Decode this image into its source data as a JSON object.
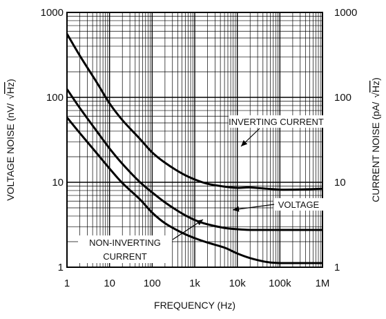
{
  "chart_data": {
    "type": "line",
    "x_scale": "log",
    "y_scale": "log",
    "xlabel": "FREQUENCY (Hz)",
    "ylabel_left": {
      "pre": "VOLTAGE NOISE (nV/",
      "root": "Hz",
      "post": ")"
    },
    "ylabel_right": {
      "pre": "CURRENT NOISE (pA/",
      "root": "Hz",
      "post": ")"
    },
    "xlim": [
      1,
      1000000
    ],
    "ylim": [
      1,
      1000
    ],
    "x_ticks": [
      {
        "value": 1,
        "label": "1"
      },
      {
        "value": 10,
        "label": "10"
      },
      {
        "value": 100,
        "label": "100"
      },
      {
        "value": 1000,
        "label": "1k"
      },
      {
        "value": 10000,
        "label": "10k"
      },
      {
        "value": 100000,
        "label": "100k"
      },
      {
        "value": 1000000,
        "label": "1M"
      }
    ],
    "y_ticks_left": [
      {
        "value": 1,
        "label": "1"
      },
      {
        "value": 10,
        "label": "10"
      },
      {
        "value": 100,
        "label": "100"
      },
      {
        "value": 1000,
        "label": "1000"
      }
    ],
    "y_ticks_right": [
      {
        "value": 1,
        "label": "1"
      },
      {
        "value": 10,
        "label": "10"
      },
      {
        "value": 100,
        "label": "100"
      },
      {
        "value": 1000,
        "label": "1000"
      }
    ],
    "grid": "log-minor",
    "series": [
      {
        "name": "INVERTING CURRENT",
        "x": [
          1,
          2,
          5,
          10,
          20,
          50,
          100,
          200,
          500,
          1000,
          2000,
          5000,
          10000,
          20000,
          50000,
          100000,
          200000,
          500000,
          1000000
        ],
        "y": [
          560,
          310,
          150,
          85,
          54,
          33,
          22.5,
          17,
          12.7,
          10.8,
          9.6,
          8.9,
          8.6,
          8.7,
          8.4,
          8.2,
          8.2,
          8.3,
          8.4
        ]
      },
      {
        "name": "VOLTAGE",
        "x": [
          1,
          2,
          5,
          10,
          20,
          50,
          100,
          200,
          500,
          1000,
          2000,
          5000,
          10000,
          20000,
          50000,
          100000,
          200000,
          500000,
          1000000
        ],
        "y": [
          125,
          75,
          40,
          25,
          16.5,
          10.2,
          7.6,
          5.8,
          4.3,
          3.6,
          3.2,
          2.9,
          2.8,
          2.75,
          2.75,
          2.75,
          2.75,
          2.75,
          2.75
        ]
      },
      {
        "name": "NON-INVERTING CURRENT",
        "x": [
          1,
          2,
          5,
          10,
          20,
          50,
          100,
          200,
          500,
          1000,
          2000,
          5000,
          10000,
          20000,
          50000,
          100000,
          200000,
          500000,
          1000000
        ],
        "y": [
          58,
          38,
          22,
          14.5,
          9.8,
          6.4,
          4.4,
          3.3,
          2.55,
          2.2,
          1.95,
          1.7,
          1.45,
          1.28,
          1.15,
          1.12,
          1.12,
          1.12,
          1.12
        ]
      }
    ],
    "annotations": [
      {
        "text": "INVERTING CURRENT",
        "series": "INVERTING CURRENT"
      },
      {
        "text": "VOLTAGE",
        "series": "VOLTAGE"
      },
      {
        "text": "NON-INVERTING",
        "text2": "CURRENT",
        "series": "NON-INVERTING CURRENT"
      }
    ]
  }
}
